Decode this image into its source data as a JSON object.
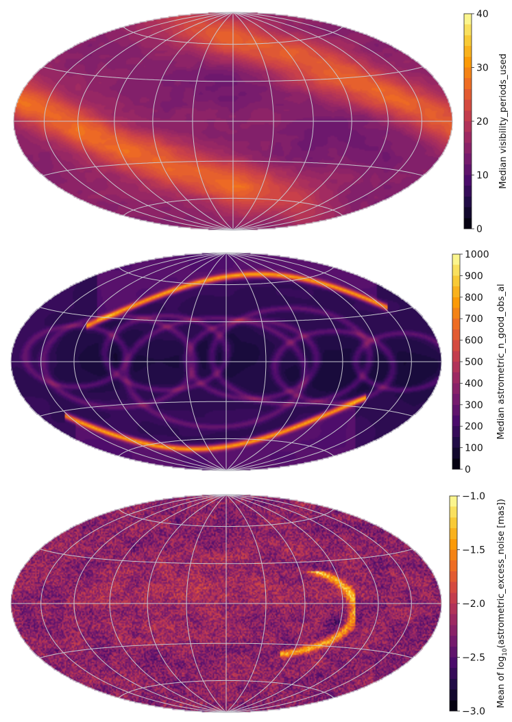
{
  "colors": {
    "inferno": [
      "#000004",
      "#1b0c41",
      "#4a0c6b",
      "#781c6d",
      "#a52c60",
      "#cf4446",
      "#ed6925",
      "#fb9b06",
      "#f7d13d",
      "#fcffa4"
    ],
    "graticule": "#c8c8d0",
    "outline": "#b8b8c0"
  },
  "chart_data": [
    {
      "type": "heatmap",
      "projection": "hammer-aitoff",
      "colorbar": {
        "label": "Median visibility_periods_used",
        "ticks": [
          "0",
          "10",
          "20",
          "30",
          "40"
        ],
        "tick_values": [
          0,
          10,
          20,
          30,
          40
        ],
        "range": [
          0,
          40
        ],
        "levels": 20
      },
      "grid": true,
      "field": "scan-bands",
      "description_values": {
        "background": 16,
        "band_max": 27
      }
    },
    {
      "type": "heatmap",
      "projection": "hammer-aitoff",
      "colorbar": {
        "label": "Median astrometric_n_good_obs_al",
        "ticks": [
          "0",
          "100",
          "200",
          "300",
          "400",
          "500",
          "600",
          "700",
          "800",
          "900",
          "1000"
        ],
        "tick_values": [
          0,
          100,
          200,
          300,
          400,
          500,
          600,
          700,
          800,
          900,
          1000
        ],
        "range": [
          0,
          1000
        ],
        "levels": 20
      },
      "grid": true,
      "field": "scan-loops",
      "description_values": {
        "background": 180,
        "ring_max": 950
      }
    },
    {
      "type": "heatmap",
      "projection": "hammer-aitoff",
      "colorbar": {
        "label_prefix": "Mean of log",
        "label_sub": "10",
        "label_suffix": "(astrometric_excess_noise [mas])",
        "ticks": [
          "−1.0",
          "−1.5",
          "−2.0",
          "−2.5",
          "−3.0"
        ],
        "tick_values": [
          -1.0,
          -1.5,
          -2.0,
          -2.5,
          -3.0
        ],
        "range": [
          -3.0,
          -1.0
        ],
        "levels": 20
      },
      "grid": true,
      "field": "noise",
      "description_values": {
        "background": -2.2,
        "feature_max": -1.2
      }
    }
  ]
}
